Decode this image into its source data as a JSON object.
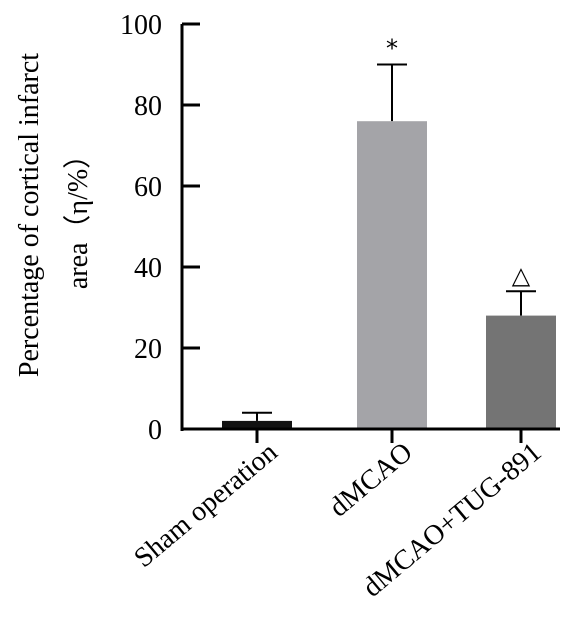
{
  "chart_data": {
    "type": "bar",
    "categories": [
      "Sham operation",
      "dMCAO",
      "dMCAO+TUG-891"
    ],
    "values": [
      2,
      76,
      28
    ],
    "errors": [
      2,
      14,
      6
    ],
    "annotations": [
      "",
      "*",
      "△"
    ],
    "bar_colors": [
      "#121212",
      "#a4a4a8",
      "#747474"
    ],
    "title": "",
    "xlabel": "",
    "ylabel_line1": "Percentage of cortical infarct",
    "ylabel_line2": "area（η/%）",
    "ylim": [
      0,
      100
    ],
    "yticks": [
      0,
      20,
      40,
      60,
      80,
      100
    ]
  }
}
